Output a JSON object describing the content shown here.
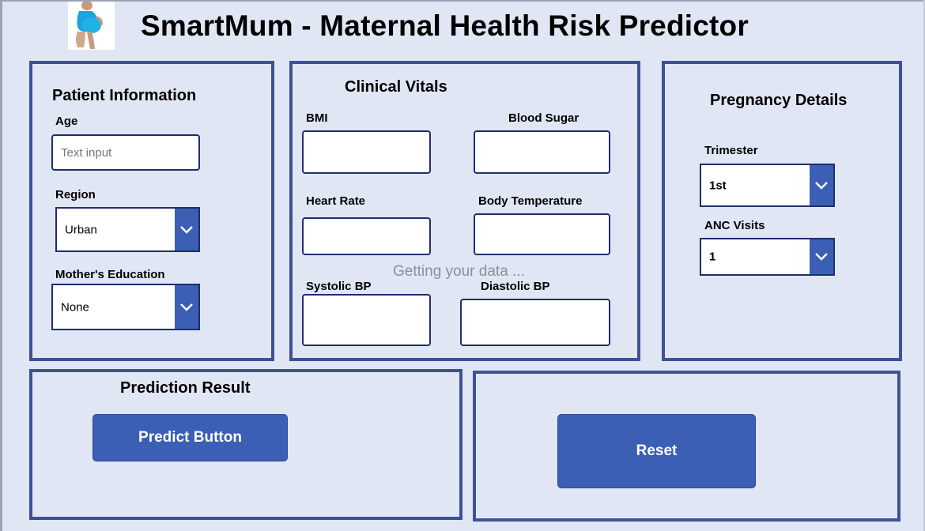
{
  "app": {
    "title": "SmartMum - Maternal Health Risk Predictor",
    "loading_text": "Getting your data ..."
  },
  "patient_info": {
    "title": "Patient Information",
    "age": {
      "label": "Age",
      "placeholder": "Text input"
    },
    "region": {
      "label": "Region",
      "value": "Urban"
    },
    "education": {
      "label": "Mother's Education",
      "value": "None"
    }
  },
  "clinical_vitals": {
    "title": "Clinical Vitals",
    "bmi": {
      "label": "BMI"
    },
    "blood_sugar": {
      "label": "Blood Sugar"
    },
    "heart_rate": {
      "label": "Heart Rate"
    },
    "body_temperature": {
      "label": "Body Temperature"
    },
    "systolic_bp": {
      "label": "Systolic BP"
    },
    "diastolic_bp": {
      "label": "Diastolic BP"
    }
  },
  "pregnancy": {
    "title": "Pregnancy Details",
    "trimester": {
      "label": "Trimester",
      "value": "1st"
    },
    "anc_visits": {
      "label": "ANC Visits",
      "value": "1"
    }
  },
  "prediction": {
    "title": "Prediction Result",
    "predict_label": "Predict Button"
  },
  "actions": {
    "reset_label": "Reset"
  },
  "colors": {
    "accent": "#3b5fb5",
    "panel_border": "#3e5194",
    "background": "#e1e6f5"
  }
}
